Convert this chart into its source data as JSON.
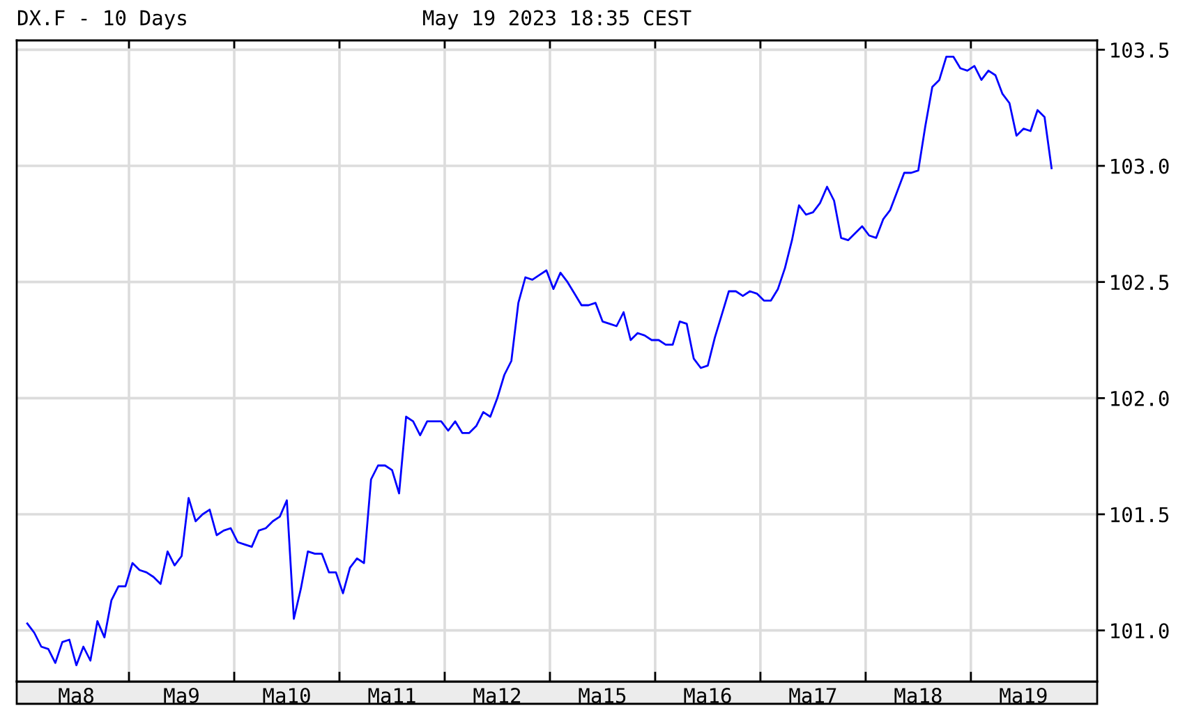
{
  "chart_data": {
    "type": "line",
    "title": "DX.F - 10 Days",
    "subtitle": "May 19 2023 18:35 CEST",
    "categories": [
      null,
      null,
      null,
      null,
      null,
      null,
      null,
      null,
      "Ma8",
      null,
      null,
      null,
      null,
      null,
      null,
      null,
      null,
      null,
      null,
      null,
      null,
      null,
      null,
      "Ma9",
      null,
      null,
      null,
      null,
      null,
      null,
      null,
      null,
      null,
      null,
      null,
      null,
      null,
      null,
      "Ma10",
      null,
      null,
      null,
      null,
      null,
      null,
      null,
      null,
      null,
      null,
      null,
      null,
      null,
      null,
      "Ma11",
      null,
      null,
      null,
      null,
      null,
      null,
      null,
      null,
      null,
      null,
      null,
      null,
      null,
      null,
      "Ma12",
      null,
      null,
      null,
      null,
      null,
      null,
      null,
      null,
      null,
      null,
      null,
      null,
      null,
      null,
      "Ma15",
      null,
      null,
      null,
      null,
      null,
      null,
      null,
      null,
      null,
      null,
      null,
      null,
      null,
      null,
      "Ma16",
      null,
      null,
      null,
      null,
      null,
      null,
      null,
      null,
      null,
      null,
      null,
      null,
      null,
      null,
      "Ma17",
      null,
      null,
      null,
      null,
      null,
      null,
      null,
      null,
      null,
      null,
      null,
      null,
      null,
      null,
      "Ma18",
      null,
      null,
      null,
      null,
      null,
      null,
      null,
      null,
      null,
      null,
      null,
      null,
      null,
      null,
      "Ma19",
      null,
      null,
      null,
      null,
      null,
      null,
      null,
      null,
      null,
      null
    ],
    "series": [
      {
        "color": "#0000ff",
        "values": [
          null,
          101.03,
          100.99,
          100.93,
          100.92,
          100.86,
          100.95,
          100.96,
          100.85,
          100.93,
          100.87,
          101.04,
          100.97,
          101.13,
          101.19,
          101.19,
          101.29,
          101.26,
          101.25,
          101.23,
          101.2,
          101.34,
          101.28,
          101.32,
          101.57,
          101.47,
          101.5,
          101.52,
          101.41,
          101.43,
          101.44,
          101.38,
          101.37,
          101.36,
          101.43,
          101.44,
          101.47,
          101.49,
          101.56,
          101.05,
          101.18,
          101.34,
          101.33,
          101.33,
          101.25,
          101.25,
          101.16,
          101.27,
          101.31,
          101.29,
          101.65,
          101.71,
          101.71,
          101.69,
          101.59,
          101.92,
          101.9,
          101.84,
          101.9,
          101.9,
          101.9,
          101.86,
          101.9,
          101.85,
          101.85,
          101.88,
          101.94,
          101.92,
          102.0,
          102.1,
          102.16,
          102.41,
          102.52,
          102.51,
          102.53,
          102.55,
          102.47,
          102.54,
          102.5,
          102.45,
          102.4,
          102.4,
          102.41,
          102.33,
          102.32,
          102.31,
          102.37,
          102.25,
          102.28,
          102.27,
          102.25,
          102.25,
          102.23,
          102.23,
          102.33,
          102.32,
          102.17,
          102.13,
          102.14,
          102.26,
          102.36,
          102.46,
          102.46,
          102.44,
          102.46,
          102.45,
          102.42,
          102.42,
          102.47,
          102.56,
          102.68,
          102.83,
          102.79,
          102.8,
          102.84,
          102.91,
          102.85,
          102.69,
          102.68,
          102.71,
          102.74,
          102.7,
          102.69,
          102.77,
          102.81,
          102.89,
          102.97,
          102.97,
          102.98,
          103.17,
          103.34,
          103.37,
          103.47,
          103.47,
          103.42,
          103.41,
          103.43,
          103.37,
          103.41,
          103.39,
          103.31,
          103.27,
          103.13,
          103.16,
          103.15,
          103.24,
          103.21,
          102.99,
          null,
          null,
          null,
          null,
          null,
          null
        ]
      }
    ],
    "ylim": [
      100.78,
      103.54
    ],
    "yticks": [
      {
        "value": 101,
        "label": "101.0"
      },
      {
        "value": 101.5,
        "label": "101.5"
      },
      {
        "value": 102,
        "label": "102.0"
      },
      {
        "value": 102.5,
        "label": "102.5"
      },
      {
        "value": 103,
        "label": "103.0"
      },
      {
        "value": 103.5,
        "label": "103.5"
      }
    ],
    "grid": true,
    "line_style": "solid"
  }
}
